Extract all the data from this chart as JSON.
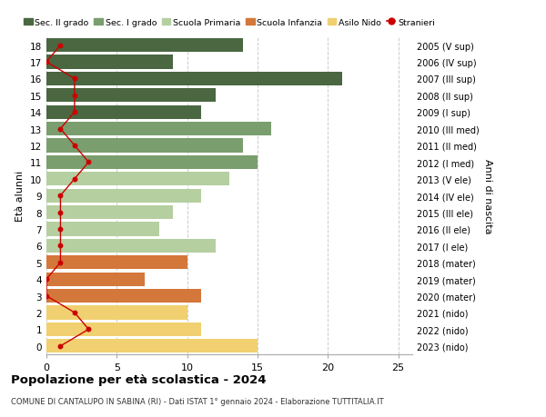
{
  "ages": [
    18,
    17,
    16,
    15,
    14,
    13,
    12,
    11,
    10,
    9,
    8,
    7,
    6,
    5,
    4,
    3,
    2,
    1,
    0
  ],
  "years": [
    "2005 (V sup)",
    "2006 (IV sup)",
    "2007 (III sup)",
    "2008 (II sup)",
    "2009 (I sup)",
    "2010 (III med)",
    "2011 (II med)",
    "2012 (I med)",
    "2013 (V ele)",
    "2014 (IV ele)",
    "2015 (III ele)",
    "2016 (II ele)",
    "2017 (I ele)",
    "2018 (mater)",
    "2019 (mater)",
    "2020 (mater)",
    "2021 (nido)",
    "2022 (nido)",
    "2023 (nido)"
  ],
  "bar_values": [
    14,
    9,
    21,
    12,
    11,
    16,
    14,
    15,
    13,
    11,
    9,
    8,
    12,
    10,
    7,
    11,
    10,
    11,
    15
  ],
  "bar_colors": [
    "#4a6741",
    "#4a6741",
    "#4a6741",
    "#4a6741",
    "#4a6741",
    "#7a9e6e",
    "#7a9e6e",
    "#7a9e6e",
    "#b5cfa0",
    "#b5cfa0",
    "#b5cfa0",
    "#b5cfa0",
    "#b5cfa0",
    "#d4773a",
    "#d4773a",
    "#d4773a",
    "#f0d070",
    "#f0d070",
    "#f0d070"
  ],
  "stranieri_values": [
    1,
    0,
    2,
    2,
    2,
    1,
    2,
    3,
    2,
    1,
    1,
    1,
    1,
    1,
    0,
    0,
    2,
    3,
    1
  ],
  "stranieri_color": "#cc0000",
  "legend_labels": [
    "Sec. II grado",
    "Sec. I grado",
    "Scuola Primaria",
    "Scuola Infanzia",
    "Asilo Nido",
    "Stranieri"
  ],
  "legend_colors": [
    "#4a6741",
    "#7a9e6e",
    "#b5cfa0",
    "#d4773a",
    "#f0d070",
    "#cc0000"
  ],
  "title": "Popolazione per età scolastica - 2024",
  "subtitle": "COMUNE DI CANTALUPO IN SABINA (RI) - Dati ISTAT 1° gennaio 2024 - Elaborazione TUTTITALIA.IT",
  "ylabel_left": "Età alunni",
  "ylabel_right": "Anni di nascita",
  "xlim": [
    0,
    26
  ],
  "background_color": "#ffffff",
  "grid_color": "#cccccc"
}
